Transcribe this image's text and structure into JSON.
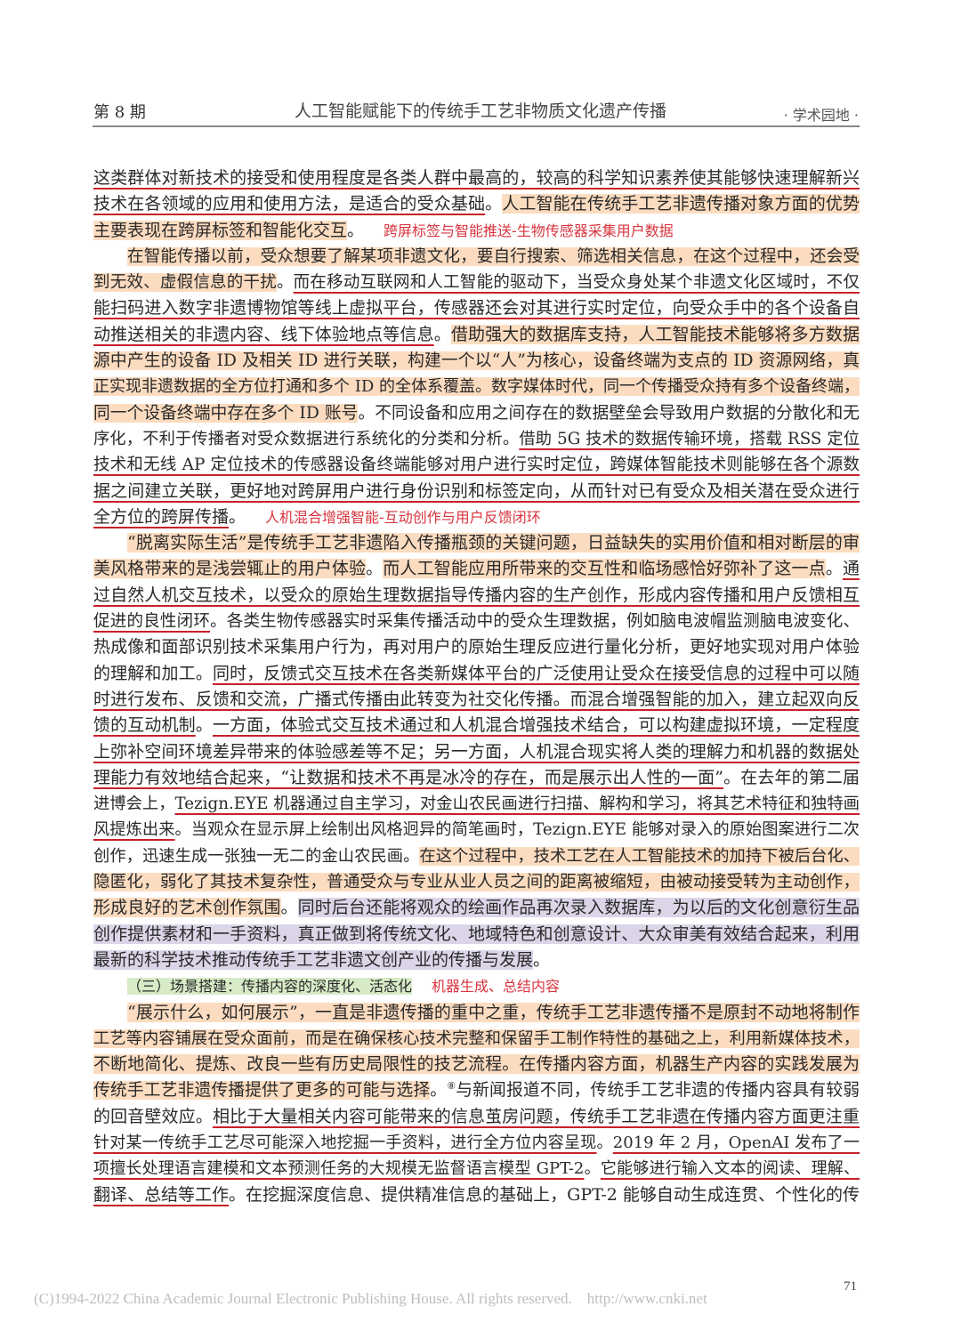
{
  "header": {
    "issue": "第 8 期",
    "title": "人工智能赋能下的传统手工艺非物质文化遗产传播",
    "section": "· 学术园地 ·"
  },
  "colors": {
    "underline": "#c8202a",
    "highlight_orange": "#fcdcc0",
    "highlight_purple": "#dcd5e8",
    "highlight_green": "#d6ebc6",
    "annotation_red": "#d8343e"
  },
  "body": {
    "lines": [
      {
        "segments": [
          {
            "s": "u",
            "text": "这类群体对新技术的接受和使用程度是各类人群中最高的，较高的科学知识素养使其能够快速理解新兴"
          }
        ]
      },
      {
        "segments": [
          {
            "s": "u",
            "text": "技术在各领域的应用和使用方法，是适合的受众基础"
          },
          {
            "s": "n",
            "text": "。"
          },
          {
            "s": "h",
            "text": "人工智能在传统手工艺非遗传播对象方面的优势"
          }
        ]
      },
      {
        "last": true,
        "segments": [
          {
            "s": "h",
            "text": "主要表现在跨屏标签和智能化交互"
          },
          {
            "s": "n",
            "text": "。"
          },
          {
            "s": "a",
            "text": "跨屏标签与智能推送-生物传感器采集用户数据"
          }
        ]
      },
      {
        "indent": true,
        "segments": [
          {
            "s": "h",
            "text": "在智能传播以前，受众想要了解某项非遗文化，要自行搜索、筛选相关信息，在这个过程中，还会受"
          }
        ]
      },
      {
        "segments": [
          {
            "s": "h",
            "text": "到无效、虚假信息的干扰"
          },
          {
            "s": "n",
            "text": "。"
          },
          {
            "s": "u",
            "text": "而在移动互联网和人工智能的驱动下，当受众身处某个非遗文化区域时，不仅"
          }
        ]
      },
      {
        "segments": [
          {
            "s": "u",
            "text": "能扫码进入数字非遗博物馆等线上虚拟平台，传感器还会对其进行实时定位，向受众手中的各个设备自"
          }
        ]
      },
      {
        "segments": [
          {
            "s": "u",
            "text": "动推送相关的非遗内容、线下体验地点等信息"
          },
          {
            "s": "n",
            "text": "。"
          },
          {
            "s": "h",
            "text": "借助强大的数据库支持，人工智能技术能够将多方数据"
          }
        ]
      },
      {
        "segments": [
          {
            "s": "h",
            "text": "源中产生的设备 ID 及相关 ID 进行关联，构建一个以“人”为核心，设备终端为支点的 ID 资源网络，真"
          }
        ]
      },
      {
        "segments": [
          {
            "s": "h",
            "text": "正实现非遗数据的全方位打通和多个 ID 的全体系覆盖。数字媒体时代，同一个传播受众持有多个设备终端，"
          }
        ]
      },
      {
        "segments": [
          {
            "s": "h",
            "text": "同一个设备终端中存在多个 ID 账号"
          },
          {
            "s": "n",
            "text": "。不同设备和应用之间存在的数据壁垒会导致用户数据的分散化和无"
          }
        ]
      },
      {
        "segments": [
          {
            "s": "n",
            "text": "序化，不利于传播者对受众数据进行系统化的分类和分析。"
          },
          {
            "s": "u",
            "text": "借助 5G 技术的数据传输环境，搭载 RSS 定位"
          }
        ]
      },
      {
        "segments": [
          {
            "s": "u",
            "text": "技术和无线 AP 定位技术的传感器设备终端能够对用户进行实时定位，跨媒体智能技术则能够在各个源数"
          }
        ]
      },
      {
        "segments": [
          {
            "s": "u",
            "text": "据之间建立关联，更好地对跨屏用户进行身份识别和标签定向，从而针对已有受众及相关潜在受众进行"
          }
        ]
      },
      {
        "last": true,
        "segments": [
          {
            "s": "u",
            "text": "全方位的跨屏传播"
          },
          {
            "s": "n",
            "text": "。"
          },
          {
            "s": "a",
            "text": "人机混合增强智能-互动创作与用户反馈闭环"
          }
        ]
      },
      {
        "indent": true,
        "segments": [
          {
            "s": "h",
            "text": "“脱离实际生活”是传统手工艺非遗陷入传播瓶颈的关键问题，日益缺失的实用价值和相对断层的审"
          }
        ]
      },
      {
        "segments": [
          {
            "s": "h",
            "text": "美风格带来的是浅尝辄止的用户体验"
          },
          {
            "s": "n",
            "text": "。"
          },
          {
            "s": "h",
            "text": "而人工智能应用所带来的交互性和临场感恰好弥补了这一点"
          },
          {
            "s": "n",
            "text": "。"
          },
          {
            "s": "u",
            "text": "通"
          }
        ]
      },
      {
        "segments": [
          {
            "s": "u",
            "text": "过自然人机交互技术，以受众的原始生理数据指导传播内容的生产创作，形成内容传播和用户反馈相互"
          }
        ]
      },
      {
        "segments": [
          {
            "s": "u",
            "text": "促进的良性闭环"
          },
          {
            "s": "n",
            "text": "。各类生物传感器实时采集传播活动中的受众生理数据，例如脑电波帽监测脑电波变化、"
          }
        ]
      },
      {
        "segments": [
          {
            "s": "n",
            "text": "热成像和面部识别技术采集用户行为，再对用户的原始生理反应进行量化分析，更好地实现对用户体验"
          }
        ]
      },
      {
        "segments": [
          {
            "s": "n",
            "text": "的理解和加工。"
          },
          {
            "s": "u",
            "text": "同时，反馈式交互技术在各类新媒体平台的广泛使用让受众在接受信息的过程中可以随"
          }
        ]
      },
      {
        "segments": [
          {
            "s": "u",
            "text": "时进行发布、反馈和交流，广播式传播由此转变为社交化传播。而混合增强智能的加入，建立起双向反"
          }
        ]
      },
      {
        "segments": [
          {
            "s": "u",
            "text": "馈的互动机制"
          },
          {
            "s": "n",
            "text": "。"
          },
          {
            "s": "u",
            "text": "一方面，体验式交互技术通过和人机混合增强技术结合，可以构建虚拟环境，一定程度"
          }
        ]
      },
      {
        "segments": [
          {
            "s": "u",
            "text": "上弥补空间环境差异带来的体验感差等不足；另一方面，人机混合现实将人类的理解力和机器的数据处"
          }
        ]
      },
      {
        "segments": [
          {
            "s": "u",
            "text": "理能力有效地结合起来，“让数据和技术不再是冰冷的存在，而是展示出人性的一面”"
          },
          {
            "s": "n",
            "text": "。在去年的第二届"
          }
        ]
      },
      {
        "segments": [
          {
            "s": "n",
            "text": "进博会上，"
          },
          {
            "s": "u",
            "text": "Tezign.EYE 机器通过自主学习，对金山农民画进行扫描、解构和学习，将其艺术特征和独特画"
          }
        ]
      },
      {
        "segments": [
          {
            "s": "u",
            "text": "风提炼出来"
          },
          {
            "s": "n",
            "text": "。当观众在显示屏上绘制出风格迥异的简笔画时，Tezign.EYE 能够对录入的原始图案进行二次"
          }
        ]
      },
      {
        "segments": [
          {
            "s": "n",
            "text": "创作，迅速生成一张独一无二的金山农民画。"
          },
          {
            "s": "h",
            "text": "在这个过程中，技术工艺在人工智能技术的加持下被后台化、"
          }
        ]
      },
      {
        "segments": [
          {
            "s": "h",
            "text": "隐匿化，弱化了其技术复杂性，普通受众与专业从业人员之间的距离被缩短，由被动接受转为主动创作，"
          }
        ]
      },
      {
        "segments": [
          {
            "s": "h",
            "text": "形成良好的艺术创作氛围"
          },
          {
            "s": "n",
            "text": "。"
          },
          {
            "s": "p",
            "text": "同时后台还能将观众的绘画作品再次录入数据库，为以后的文化创意衍生品"
          }
        ]
      },
      {
        "segments": [
          {
            "s": "p",
            "text": "创作提供素材和一手资料，真正做到将传统文化、地域特色和创意设计、大众审美有效结合起来，利用"
          }
        ]
      },
      {
        "last": true,
        "segments": [
          {
            "s": "p",
            "text": "最新的科学技术推动传统手工艺非遗文创产业的传播与发展"
          },
          {
            "s": "n",
            "text": "。"
          }
        ]
      },
      {
        "last": true,
        "indent": true,
        "segments": [
          {
            "s": "g",
            "text": "（三）场景搭建：传播内容的深度化、活态化"
          },
          {
            "s": "a",
            "text": "机器生成、总结内容"
          }
        ]
      },
      {
        "indent": true,
        "segments": [
          {
            "s": "h",
            "text": "“展示什么，如何展示”，一直是非遗传播的重中之重，传统手工艺非遗传播不是原封不动地将制作"
          }
        ]
      },
      {
        "segments": [
          {
            "s": "h",
            "text": "工艺等内容铺展在受众面前，而是在确保核心技术完整和保留手工制作特性的基础之上，利用新媒体技术，"
          }
        ]
      },
      {
        "segments": [
          {
            "s": "h",
            "text": "不断地简化、提炼、改良一些有历史局限性的技艺流程。在传播内容方面，机器生产内容的实践发展为"
          }
        ]
      },
      {
        "segments": [
          {
            "s": "h",
            "text": "传统手工艺非遗传播提供了更多的可能与选择"
          },
          {
            "s": "n",
            "text": "。"
          },
          {
            "s": "sup",
            "text": "⑧"
          },
          {
            "s": "n",
            "text": "与新闻报道不同，传统手工艺非遗的传播内容具有较弱"
          }
        ]
      },
      {
        "segments": [
          {
            "s": "n",
            "text": "的回音壁效应。"
          },
          {
            "s": "u",
            "text": "相比于大量相关内容可能带来的信息茧房问题，传统手工艺非遗在传播内容方面更注重"
          }
        ]
      },
      {
        "segments": [
          {
            "s": "u",
            "text": "针对某一传统手工艺尽可能深入地挖掘一手资料，进行全方位内容呈现"
          },
          {
            "s": "n",
            "text": "。"
          },
          {
            "s": "u",
            "text": "2019 年 2 月，OpenAI 发布了一"
          }
        ]
      },
      {
        "segments": [
          {
            "s": "u",
            "text": "项擅长处理语言建模和文本预测任务的大规模无监督语言模型 GPT-2"
          },
          {
            "s": "n",
            "text": "。"
          },
          {
            "s": "u",
            "text": "它能够进行输入文本的阅读、理解、"
          }
        ]
      },
      {
        "segments": [
          {
            "s": "u",
            "text": "翻译、总结等工作"
          },
          {
            "s": "n",
            "text": "。在挖掘深度信息、提供精准信息的基础上，GPT-2 能够自动生成连贯、个性化的传"
          }
        ]
      }
    ]
  },
  "footer": {
    "copyright": "(C)1994-2022 China Academic Journal Electronic Publishing House. All rights reserved.    http://www.cnki.net",
    "page_number": "71"
  }
}
